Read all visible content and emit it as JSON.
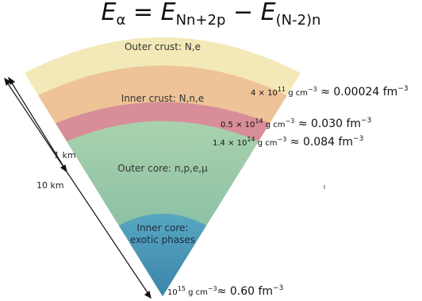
{
  "formula": {
    "lhs": "E",
    "lhs_sub": "α",
    "eq": " = ",
    "t1": "E",
    "t1_sub": "Nn+2p",
    "minus": " − ",
    "t2": "E",
    "t2_sub": "(N-2)n"
  },
  "layers": {
    "outer_crust": "Outer crust: N,e",
    "inner_crust": "Inner crust: N,n,e",
    "outer_core": "Outer core: n,p,e,μ",
    "inner_core_1": "Inner core:",
    "inner_core_2": "exotic phases"
  },
  "distances": {
    "one_km": "1 km",
    "ten_km": "10 km"
  },
  "densities": [
    {
      "mant": "4 × 10",
      "exp": "11",
      "unit": " g cm",
      "uexp": "−3",
      "approx": " ≈ 0.00024 fm",
      "aexp": "−3"
    },
    {
      "mant": "0.5 × 10",
      "exp": "14",
      "unit": " g cm",
      "uexp": "−3",
      "approx": " ≈ 0.030 fm",
      "aexp": "−3"
    },
    {
      "mant": "1.4 × 10",
      "exp": "14",
      "unit": " g cm",
      "uexp": "−3",
      "approx": " ≈ 0.084 fm",
      "aexp": "−3"
    },
    {
      "mant": "10",
      "exp": "15",
      "unit": " g cm",
      "uexp": "−3",
      "approx": "≈ 0.60 fm",
      "aexp": "−3"
    }
  ],
  "colors": {
    "outer_crust": "#f3e9b8",
    "inner_crust": "#eec59a",
    "pink_band": "#d9909a",
    "outer_core": "#a5cfa9",
    "inner_core": "#4799b8"
  }
}
